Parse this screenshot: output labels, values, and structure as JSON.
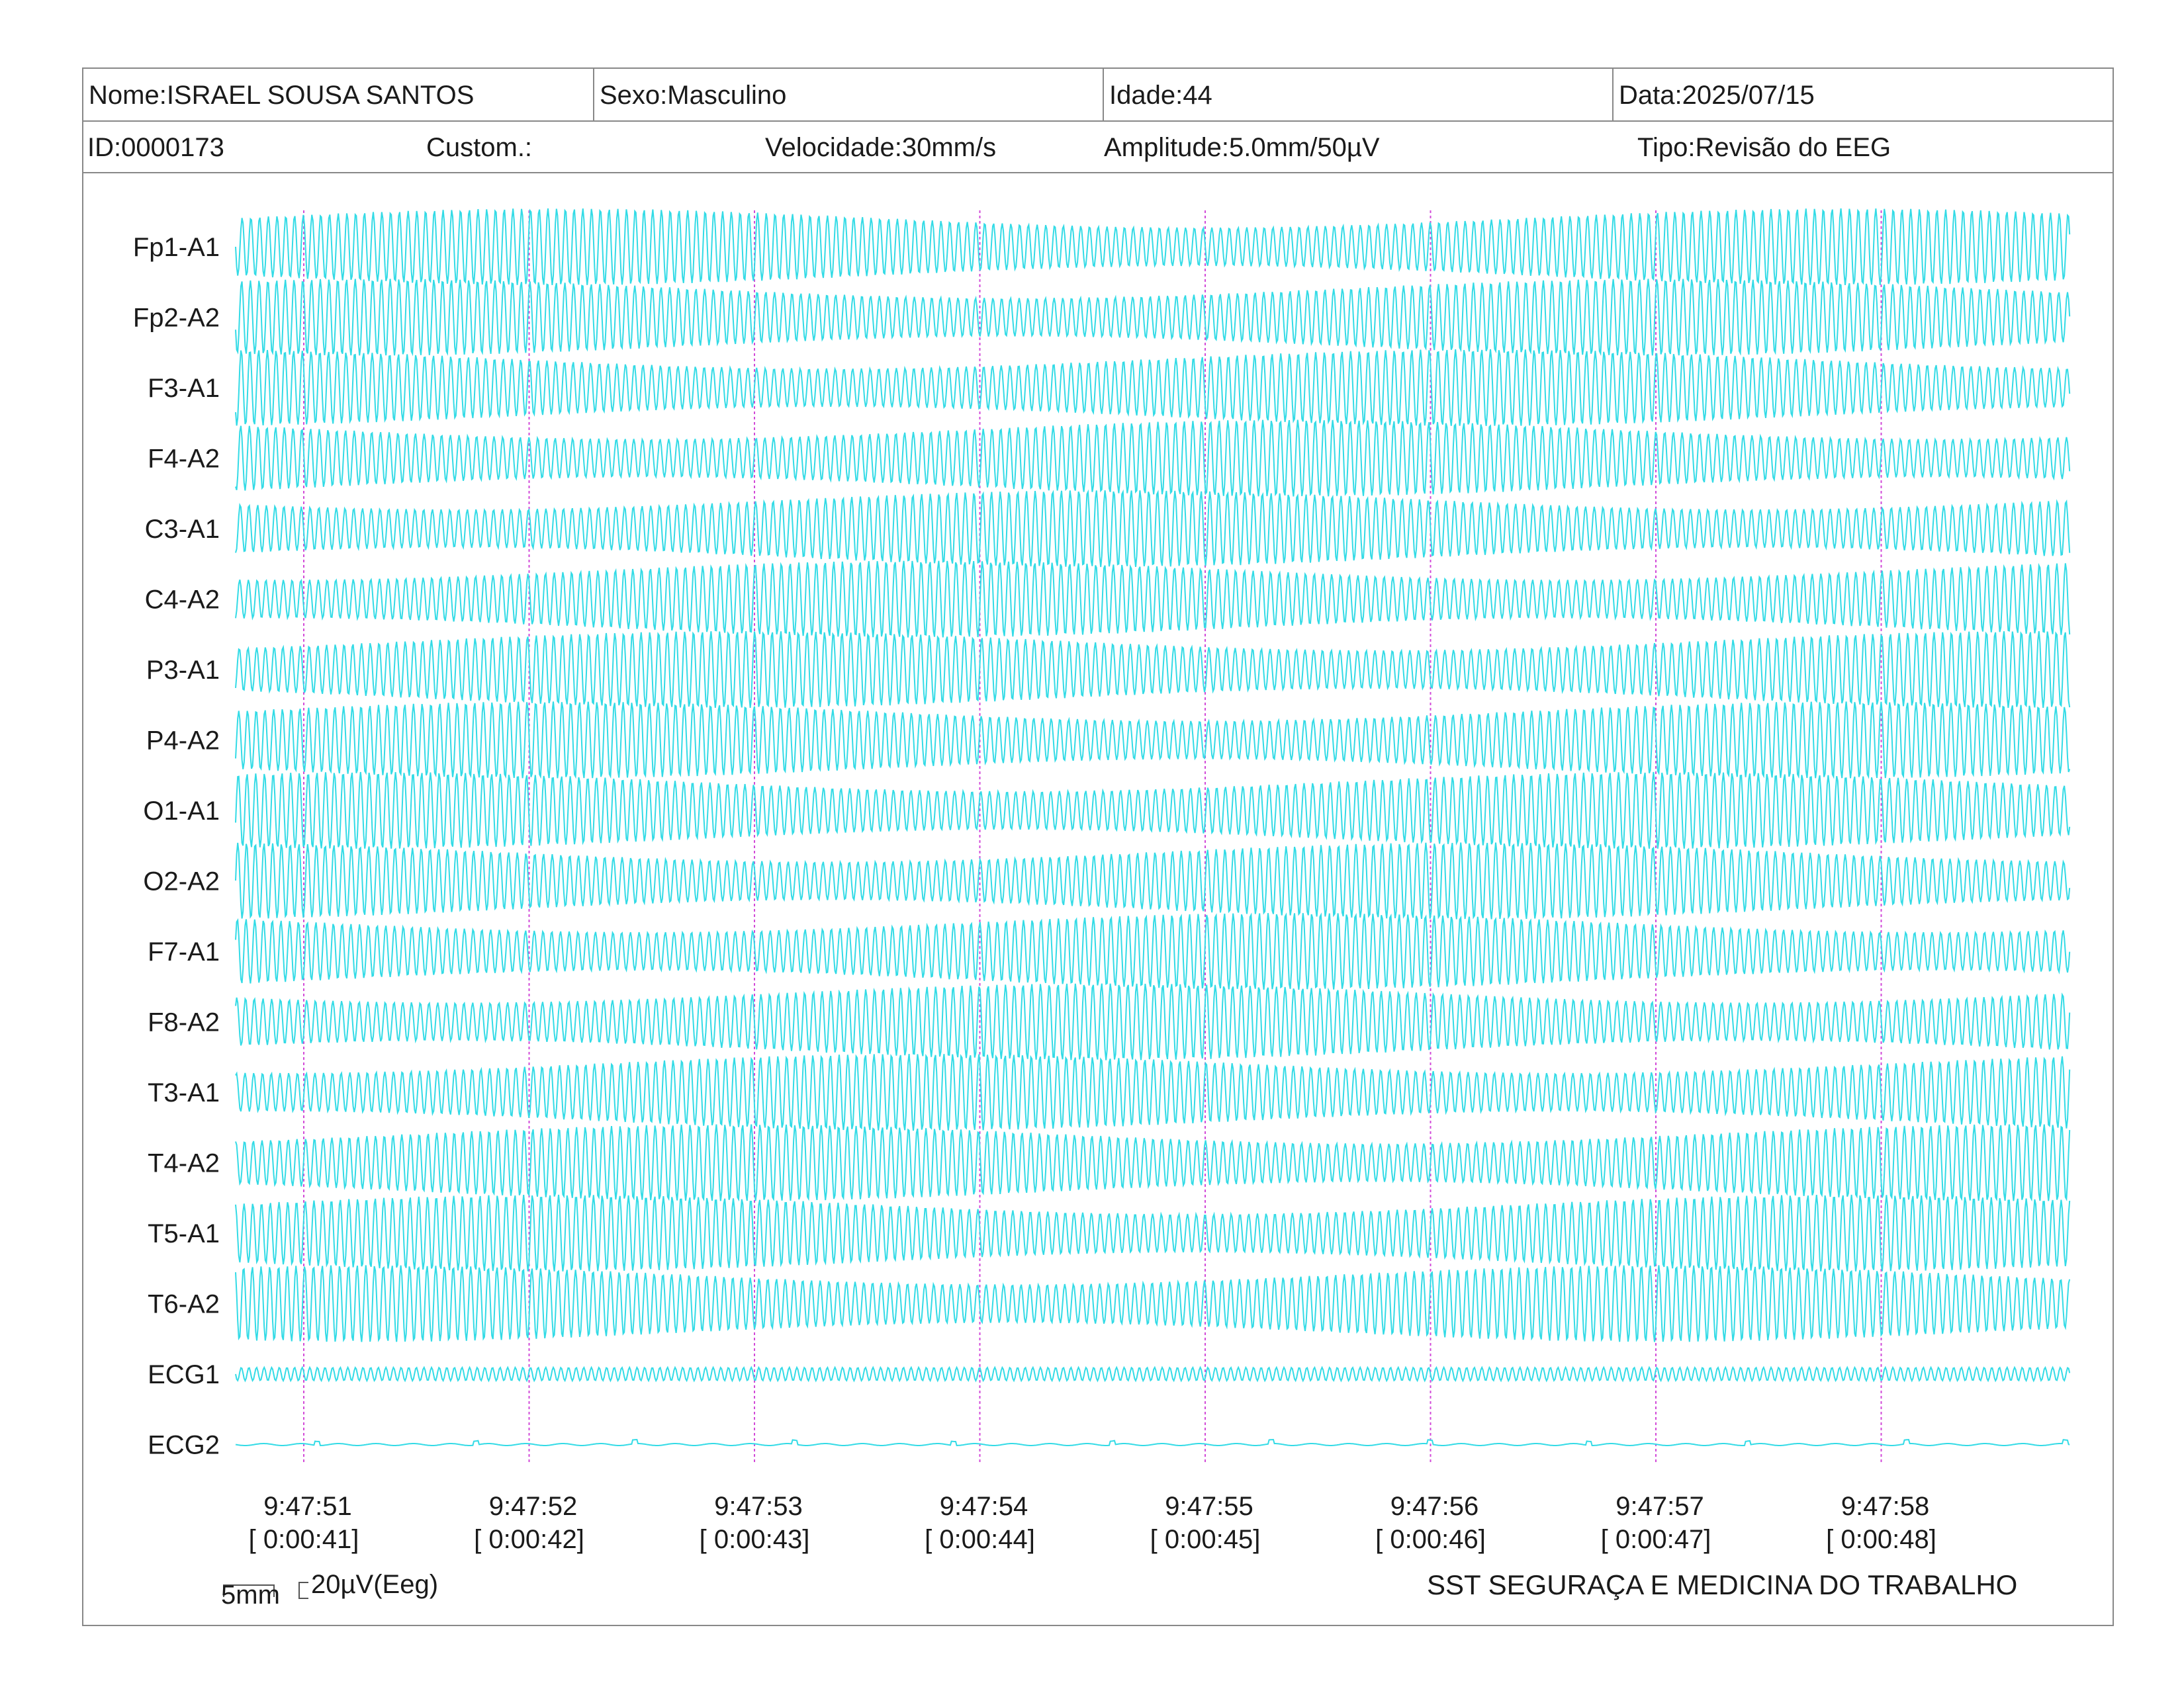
{
  "header": {
    "nome": "Nome:ISRAEL SOUSA SANTOS",
    "sexo": "Sexo:Masculino",
    "idade": "Idade:44",
    "data": "Data:2025/07/15",
    "id": "ID:0000173",
    "custom": "Custom.:",
    "velocidade": "Velocidade:30mm/s",
    "amplitude": "Amplitude:5.0mm/50µV",
    "tipo": "Tipo:Revisão do EEG"
  },
  "channels": [
    "Fp1-A1",
    "Fp2-A2",
    "F3-A1",
    "F4-A2",
    "C3-A1",
    "C4-A2",
    "P3-A1",
    "P4-A2",
    "O1-A1",
    "O2-A2",
    "F7-A1",
    "F8-A2",
    "T3-A1",
    "T4-A2",
    "T5-A1",
    "T6-A2",
    "ECG1",
    "ECG2"
  ],
  "time_markers": [
    {
      "clock": "9:47:51",
      "elapsed": "[ 0:00:41]"
    },
    {
      "clock": "9:47:52",
      "elapsed": "[ 0:00:42]"
    },
    {
      "clock": "9:47:53",
      "elapsed": "[ 0:00:43]"
    },
    {
      "clock": "9:47:54",
      "elapsed": "[ 0:00:44]"
    },
    {
      "clock": "9:47:55",
      "elapsed": "[ 0:00:45]"
    },
    {
      "clock": "9:47:56",
      "elapsed": "[ 0:00:46]"
    },
    {
      "clock": "9:47:57",
      "elapsed": "[ 0:00:47]"
    },
    {
      "clock": "9:47:58",
      "elapsed": "[ 0:00:48]"
    }
  ],
  "scale": {
    "time_label": "5mm",
    "amp_label": "20µV(Eeg)"
  },
  "footer": {
    "company": "SST SEGURAÇA E MEDICINA DO TRABALHO"
  },
  "colors": {
    "trace": "#33dbe6",
    "marker": "#d24ad8",
    "border": "#888888"
  }
}
